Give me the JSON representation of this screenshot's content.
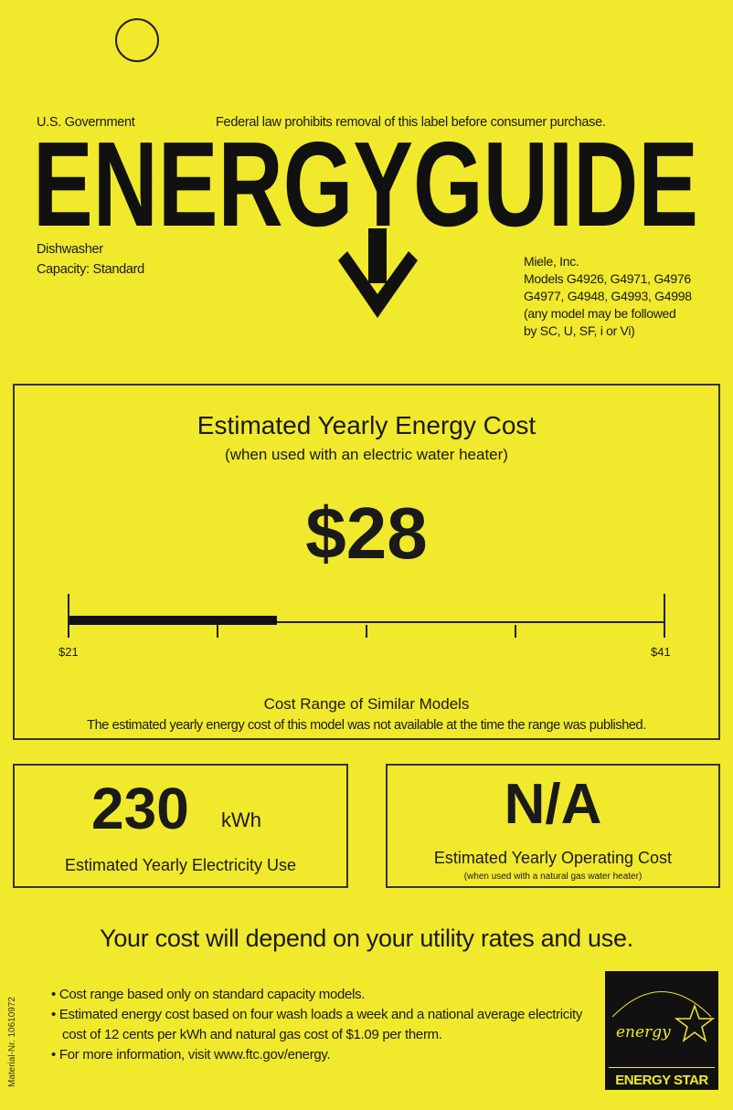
{
  "header": {
    "gov": "U.S. Government",
    "notice": "Federal law prohibits removal of this label before consumer purchase.",
    "logo": "ENERGYGUIDE"
  },
  "product": {
    "type": "Dishwasher",
    "capacity": "Capacity: Standard"
  },
  "manufacturer": {
    "name": "Miele, Inc.",
    "models_1": "Models G4926, G4971, G4976",
    "models_2": "G4977, G4948, G4993, G4998",
    "note_1": "(any model may be followed",
    "note_2": "by SC, U, SF, i or Vi)"
  },
  "cost": {
    "title": "Estimated Yearly Energy Cost",
    "subtitle": "(when used with an electric water heater)",
    "value": "$28",
    "value_number": 28,
    "range_min": 21,
    "range_max": 41,
    "min_label": "$21",
    "max_label": "$41",
    "range_title": "Cost Range of Similar Models",
    "range_note": "The estimated yearly energy cost of this model was not available at the time the range was published."
  },
  "electricity": {
    "value": "230",
    "unit": "kWh",
    "label": "Estimated Yearly Electricity Use"
  },
  "gas": {
    "value": "N/A",
    "label": "Estimated Yearly Operating Cost",
    "sublabel": "(when used with a natural gas water heater)"
  },
  "footer": {
    "headline": "Your cost will depend on your utility rates and use.",
    "bullets": [
      "Cost range based only on standard capacity models.",
      "Estimated energy cost based on four wash loads a week and a national average electricity cost of 12 cents per kWh and natural gas cost of $1.09 per therm.",
      "For more information, visit www.ftc.gov/energy."
    ],
    "material": "Material-Nr. 10610972"
  },
  "energy_star": {
    "script": "energy",
    "label": "ENERGY STAR"
  },
  "colors": {
    "background": "#f1e92c",
    "ink": "#1a1a1a"
  }
}
